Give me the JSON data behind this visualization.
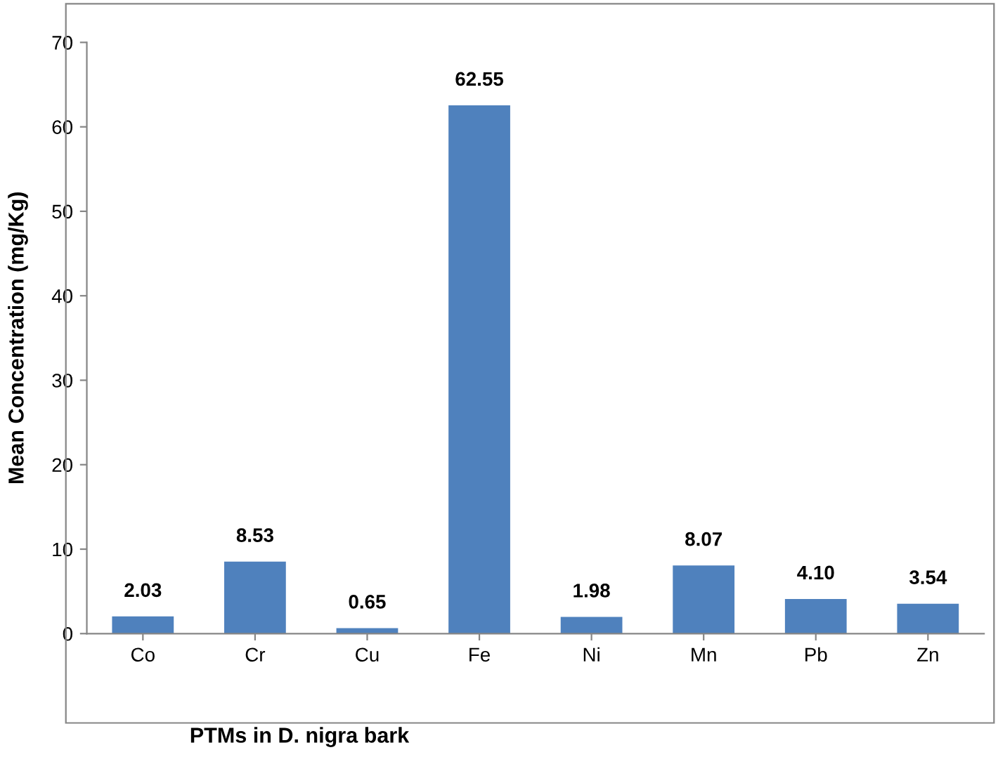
{
  "chart_data": {
    "type": "bar",
    "xlabel": "PTMs in D. nigra bark",
    "ylabel": "Mean Concentration (mg/Kg)",
    "categories": [
      "Co",
      "Cr",
      "Cu",
      "Fe",
      "Ni",
      "Mn",
      "Pb",
      "Zn"
    ],
    "values": [
      2.03,
      8.53,
      0.65,
      62.55,
      1.98,
      8.07,
      4.1,
      3.54
    ],
    "value_labels": [
      "2.03",
      "8.53",
      "0.65",
      "62.55",
      "1.98",
      "8.07",
      "4.10",
      "3.54"
    ],
    "color": "#4f81bd",
    "ylim": [
      0,
      70
    ],
    "yticks": [
      0,
      10,
      20,
      30,
      40,
      50,
      60,
      70
    ],
    "grid": false,
    "legend": false
  }
}
